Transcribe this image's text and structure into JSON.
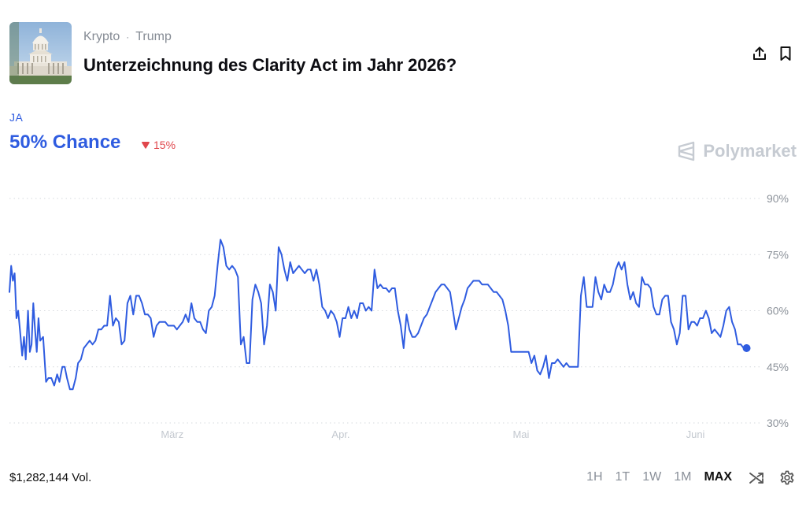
{
  "header": {
    "breadcrumbs": [
      "Krypto",
      "Trump"
    ],
    "separator": "·",
    "title": "Unterzeichnung des Clarity Act im Jahr 2026?"
  },
  "outcome": {
    "label": "JA",
    "chance": "50% Chance",
    "delta": "15%",
    "delta_direction": "down",
    "color": "#2f5ce0",
    "delta_color": "#e0474c"
  },
  "brand": {
    "name": "Polymarket"
  },
  "icons": {
    "share": "share-icon",
    "bookmark": "bookmark-icon",
    "shuffle": "shuffle-icon",
    "settings": "gear-icon"
  },
  "chart_data": {
    "type": "line",
    "y_ticks": [
      "90%",
      "75%",
      "60%",
      "45%",
      "30%"
    ],
    "y_tick_values": [
      90,
      75,
      60,
      45,
      30
    ],
    "ylim": [
      30,
      90
    ],
    "x_ticks": [
      "März",
      "Apr.",
      "Mai",
      "Juni"
    ],
    "x_tick_days": [
      28,
      57,
      88,
      118
    ],
    "x_range_days": [
      0,
      127
    ],
    "grid": true,
    "series": [
      {
        "color": "#2f5ce0",
        "points": [
          [
            0.0,
            65
          ],
          [
            0.3,
            72
          ],
          [
            0.6,
            68
          ],
          [
            0.9,
            70
          ],
          [
            1.2,
            58
          ],
          [
            1.5,
            60
          ],
          [
            1.8,
            55
          ],
          [
            2.2,
            48
          ],
          [
            2.5,
            53
          ],
          [
            2.8,
            47
          ],
          [
            3.2,
            60
          ],
          [
            3.5,
            49
          ],
          [
            3.8,
            51
          ],
          [
            4.1,
            62
          ],
          [
            4.4,
            55
          ],
          [
            4.7,
            49
          ],
          [
            5.0,
            58
          ],
          [
            5.3,
            52
          ],
          [
            5.8,
            53
          ],
          [
            6.3,
            41
          ],
          [
            6.7,
            42
          ],
          [
            7.2,
            42
          ],
          [
            7.7,
            40
          ],
          [
            8.2,
            43
          ],
          [
            8.6,
            41
          ],
          [
            9.1,
            45
          ],
          [
            9.5,
            45
          ],
          [
            9.9,
            42
          ],
          [
            10.4,
            39
          ],
          [
            10.9,
            39
          ],
          [
            11.4,
            42
          ],
          [
            11.8,
            46
          ],
          [
            12.3,
            47
          ],
          [
            12.8,
            50
          ],
          [
            13.3,
            51
          ],
          [
            13.8,
            52
          ],
          [
            14.3,
            51
          ],
          [
            14.8,
            52
          ],
          [
            15.3,
            55
          ],
          [
            15.8,
            55
          ],
          [
            16.3,
            56
          ],
          [
            16.8,
            56
          ],
          [
            17.3,
            64
          ],
          [
            17.8,
            56
          ],
          [
            18.3,
            58
          ],
          [
            18.8,
            57
          ],
          [
            19.3,
            51
          ],
          [
            19.8,
            52
          ],
          [
            20.3,
            62
          ],
          [
            20.8,
            64
          ],
          [
            21.3,
            59
          ],
          [
            21.8,
            64
          ],
          [
            22.3,
            64
          ],
          [
            22.8,
            62
          ],
          [
            23.3,
            59
          ],
          [
            23.8,
            59
          ],
          [
            24.3,
            58
          ],
          [
            24.8,
            53
          ],
          [
            25.3,
            56
          ],
          [
            25.8,
            57
          ],
          [
            26.3,
            57
          ],
          [
            26.8,
            57
          ],
          [
            27.3,
            56
          ],
          [
            27.8,
            56
          ],
          [
            28.3,
            56
          ],
          [
            28.8,
            55
          ],
          [
            29.3,
            56
          ],
          [
            29.8,
            57
          ],
          [
            30.3,
            59
          ],
          [
            30.8,
            57
          ],
          [
            31.3,
            62
          ],
          [
            31.8,
            58
          ],
          [
            32.3,
            57
          ],
          [
            32.8,
            57
          ],
          [
            33.3,
            55
          ],
          [
            33.8,
            54
          ],
          [
            34.3,
            60
          ],
          [
            34.8,
            61
          ],
          [
            35.3,
            64
          ],
          [
            35.8,
            72
          ],
          [
            36.3,
            79
          ],
          [
            36.8,
            77
          ],
          [
            37.3,
            72
          ],
          [
            37.8,
            71
          ],
          [
            38.3,
            72
          ],
          [
            38.8,
            71
          ],
          [
            39.3,
            69
          ],
          [
            39.8,
            51
          ],
          [
            40.3,
            53
          ],
          [
            40.8,
            46
          ],
          [
            41.3,
            46
          ],
          [
            41.8,
            63
          ],
          [
            42.3,
            67
          ],
          [
            42.8,
            65
          ],
          [
            43.3,
            62
          ],
          [
            43.8,
            51
          ],
          [
            44.3,
            56
          ],
          [
            44.8,
            67
          ],
          [
            45.3,
            65
          ],
          [
            45.8,
            60
          ],
          [
            46.3,
            77
          ],
          [
            46.8,
            75
          ],
          [
            47.3,
            71
          ],
          [
            47.8,
            68
          ],
          [
            48.3,
            73
          ],
          [
            48.8,
            70
          ],
          [
            49.3,
            71
          ],
          [
            49.8,
            72
          ],
          [
            50.3,
            71
          ],
          [
            50.8,
            70
          ],
          [
            51.3,
            71
          ],
          [
            51.8,
            71
          ],
          [
            52.3,
            68
          ],
          [
            52.8,
            71
          ],
          [
            53.3,
            67
          ],
          [
            53.8,
            61
          ],
          [
            54.3,
            60
          ],
          [
            54.8,
            58
          ],
          [
            55.3,
            60
          ],
          [
            55.8,
            59
          ],
          [
            56.3,
            57
          ],
          [
            56.8,
            53
          ],
          [
            57.3,
            58
          ],
          [
            57.8,
            58
          ],
          [
            58.3,
            61
          ],
          [
            58.8,
            58
          ],
          [
            59.3,
            60
          ],
          [
            59.8,
            58
          ],
          [
            60.3,
            62
          ],
          [
            60.8,
            62
          ],
          [
            61.3,
            60
          ],
          [
            61.8,
            61
          ],
          [
            62.3,
            60
          ],
          [
            62.8,
            71
          ],
          [
            63.3,
            66
          ],
          [
            63.8,
            67
          ],
          [
            64.3,
            66
          ],
          [
            64.8,
            66
          ],
          [
            65.3,
            65
          ],
          [
            65.8,
            66
          ],
          [
            66.3,
            66
          ],
          [
            66.8,
            60
          ],
          [
            67.3,
            56
          ],
          [
            67.8,
            50
          ],
          [
            68.3,
            59
          ],
          [
            68.8,
            55
          ],
          [
            69.3,
            53
          ],
          [
            69.8,
            53
          ],
          [
            70.3,
            54
          ],
          [
            70.8,
            56
          ],
          [
            71.3,
            58
          ],
          [
            71.8,
            59
          ],
          [
            72.3,
            61
          ],
          [
            72.8,
            63
          ],
          [
            73.3,
            65
          ],
          [
            73.8,
            66
          ],
          [
            74.3,
            67
          ],
          [
            74.8,
            67
          ],
          [
            75.3,
            66
          ],
          [
            75.8,
            65
          ],
          [
            76.3,
            60
          ],
          [
            76.8,
            55
          ],
          [
            77.3,
            58
          ],
          [
            77.8,
            61
          ],
          [
            78.3,
            63
          ],
          [
            78.8,
            66
          ],
          [
            79.3,
            67
          ],
          [
            79.8,
            68
          ],
          [
            80.3,
            68
          ],
          [
            80.8,
            68
          ],
          [
            81.3,
            67
          ],
          [
            81.8,
            67
          ],
          [
            82.3,
            67
          ],
          [
            82.8,
            66
          ],
          [
            83.3,
            65
          ],
          [
            83.8,
            65
          ],
          [
            84.3,
            64
          ],
          [
            84.8,
            63
          ],
          [
            85.3,
            60
          ],
          [
            85.8,
            56
          ],
          [
            86.3,
            49
          ],
          [
            86.8,
            49
          ],
          [
            87.3,
            49
          ],
          [
            87.8,
            49
          ],
          [
            88.3,
            49
          ],
          [
            88.8,
            49
          ],
          [
            89.3,
            49
          ],
          [
            89.8,
            46
          ],
          [
            90.3,
            48
          ],
          [
            90.8,
            44
          ],
          [
            91.3,
            43
          ],
          [
            91.8,
            45
          ],
          [
            92.3,
            48
          ],
          [
            92.8,
            42
          ],
          [
            93.3,
            46
          ],
          [
            93.8,
            46
          ],
          [
            94.3,
            47
          ],
          [
            94.8,
            46
          ],
          [
            95.3,
            45
          ],
          [
            95.8,
            46
          ],
          [
            96.3,
            45
          ],
          [
            96.8,
            45
          ],
          [
            97.3,
            45
          ],
          [
            97.8,
            45
          ],
          [
            98.3,
            64
          ],
          [
            98.8,
            69
          ],
          [
            99.3,
            61
          ],
          [
            99.8,
            61
          ],
          [
            100.3,
            61
          ],
          [
            100.8,
            69
          ],
          [
            101.3,
            65
          ],
          [
            101.8,
            63
          ],
          [
            102.3,
            67
          ],
          [
            102.8,
            65
          ],
          [
            103.3,
            65
          ],
          [
            103.8,
            67
          ],
          [
            104.3,
            71
          ],
          [
            104.8,
            73
          ],
          [
            105.3,
            71
          ],
          [
            105.8,
            73
          ],
          [
            106.3,
            67
          ],
          [
            106.8,
            63
          ],
          [
            107.3,
            65
          ],
          [
            107.8,
            62
          ],
          [
            108.3,
            61
          ],
          [
            108.8,
            69
          ],
          [
            109.3,
            67
          ],
          [
            109.8,
            67
          ],
          [
            110.3,
            66
          ],
          [
            110.8,
            61
          ],
          [
            111.3,
            59
          ],
          [
            111.8,
            59
          ],
          [
            112.3,
            63
          ],
          [
            112.8,
            64
          ],
          [
            113.3,
            64
          ],
          [
            113.8,
            57
          ],
          [
            114.3,
            55
          ],
          [
            114.8,
            51
          ],
          [
            115.3,
            54
          ],
          [
            115.8,
            64
          ],
          [
            116.3,
            64
          ],
          [
            116.8,
            55
          ],
          [
            117.3,
            57
          ],
          [
            117.8,
            57
          ],
          [
            118.3,
            56
          ],
          [
            118.8,
            58
          ],
          [
            119.3,
            58
          ],
          [
            119.8,
            60
          ],
          [
            120.3,
            58
          ],
          [
            120.8,
            54
          ],
          [
            121.3,
            55
          ],
          [
            121.8,
            54
          ],
          [
            122.3,
            53
          ],
          [
            122.8,
            56
          ],
          [
            123.3,
            60
          ],
          [
            123.8,
            61
          ],
          [
            124.3,
            57
          ],
          [
            124.8,
            55
          ],
          [
            125.3,
            51
          ],
          [
            125.8,
            51
          ],
          [
            126.3,
            50
          ],
          [
            126.8,
            50
          ]
        ]
      }
    ]
  },
  "footer": {
    "volume": "$1,282,144 Vol.",
    "ranges": [
      "1H",
      "1T",
      "1W",
      "1M",
      "MAX"
    ],
    "active_range": "MAX"
  }
}
